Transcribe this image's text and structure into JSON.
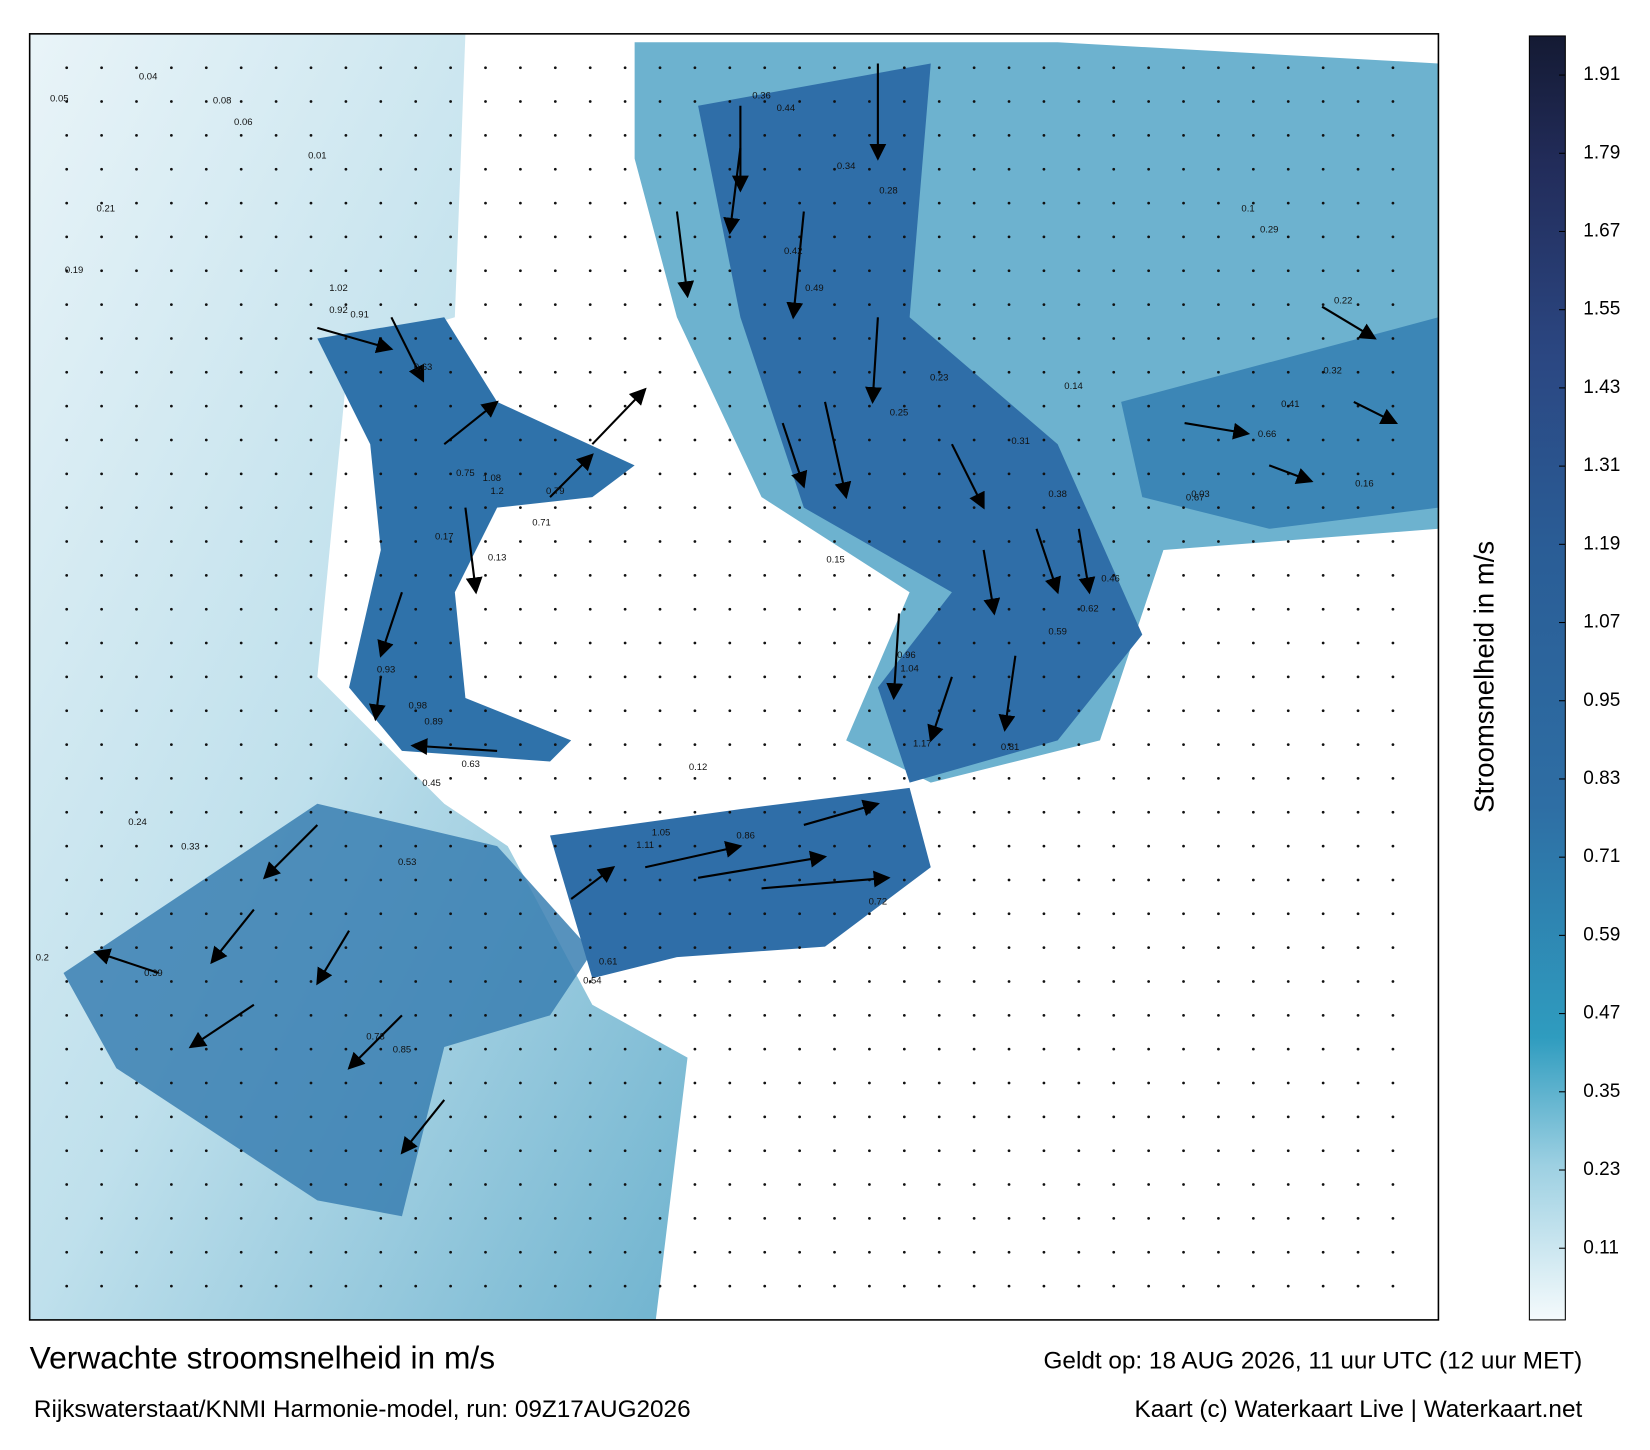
{
  "title": "Verwachte stroomsnelheid in m/s",
  "model_run": "Rijkswaterstaat/KNMI Harmonie-model, run: 09Z17AUG2026",
  "valid_time": "Geldt op: 18 AUG 2026, 11 uur UTC (12 uur MET)",
  "credit": "Kaart (c) Waterkaart Live | Waterkaart.net",
  "colorbar": {
    "label": "Stroomsnelheid in m/s",
    "lim": [
      0,
      1.97
    ],
    "ticks": [
      0.11,
      0.23,
      0.35,
      0.47,
      0.59,
      0.71,
      0.83,
      0.95,
      1.07,
      1.19,
      1.31,
      1.43,
      1.55,
      1.67,
      1.79,
      1.91
    ]
  },
  "speed_labels": [
    0.05,
    0.19,
    0.2,
    0.08,
    0.06,
    0.04,
    0.01,
    0.21,
    0.17,
    0.13,
    0.92,
    1.02,
    0.91,
    0.63,
    0.75,
    1.08,
    1.2,
    0.79,
    0.71,
    0.93,
    0.98,
    0.89,
    0.45,
    0.63,
    0.24,
    0.33,
    0.39,
    0.53,
    0.73,
    0.85,
    0.61,
    0.54,
    1.11,
    1.05,
    0.86,
    0.12,
    0.36,
    0.44,
    0.49,
    0.42,
    0.34,
    0.28,
    0.25,
    0.23,
    0.31,
    0.38,
    0.46,
    0.67,
    0.59,
    0.72,
    0.96,
    1.04,
    1.17,
    0.81,
    0.62,
    0.15,
    0.14,
    0.1,
    0.22,
    0.32,
    0.41,
    0.66,
    0.03,
    0.29,
    0.16
  ]
}
